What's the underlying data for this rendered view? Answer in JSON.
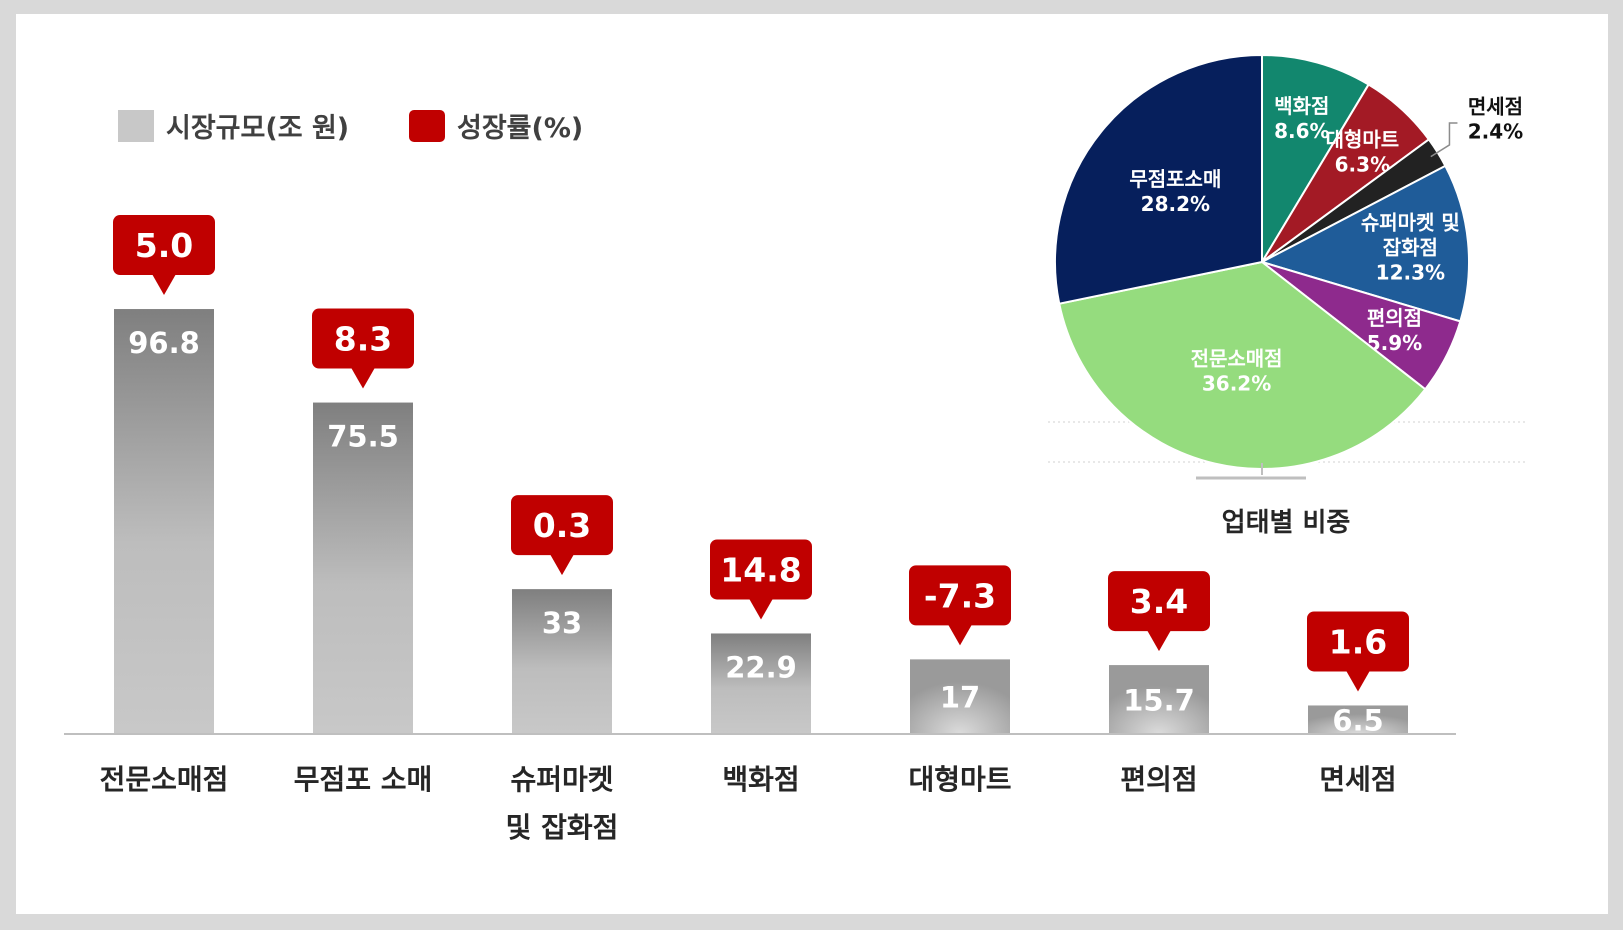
{
  "legend": {
    "size_label": "시장규모(조 원)",
    "growth_label": "성장률(%)",
    "size_color": "#c8c8c8",
    "growth_color": "#c00000"
  },
  "chart_data": [
    {
      "type": "bar",
      "categories": [
        "전문소매점",
        "무점포 소매",
        "슈퍼마켓 및 잡화점",
        "백화점",
        "대형마트",
        "편의점",
        "면세점"
      ],
      "category_lines": [
        [
          "전문소매점"
        ],
        [
          "무점포 소매"
        ],
        [
          "슈퍼마켓",
          "및 잡화점"
        ],
        [
          "백화점"
        ],
        [
          "대형마트"
        ],
        [
          "편의점"
        ],
        [
          "면세점"
        ]
      ],
      "series": [
        {
          "name": "시장규모(조 원)",
          "values": [
            96.8,
            75.5,
            33,
            22.9,
            17,
            15.7,
            6.5
          ]
        },
        {
          "name": "성장률(%)",
          "values": [
            5.0,
            8.3,
            0.3,
            14.8,
            -7.3,
            3.4,
            1.6
          ]
        }
      ],
      "value_labels": [
        "96.8",
        "75.5",
        "33",
        "22.9",
        "17",
        "15.7",
        "6.5"
      ],
      "growth_labels": [
        "5.0",
        "8.3",
        "0.3",
        "14.8",
        "-7.3",
        "3.4",
        "1.6"
      ],
      "legend_position": "top-left",
      "grid": false
    },
    {
      "type": "pie",
      "title": "업태별 비중",
      "slices": [
        {
          "label": "백화점",
          "lines": [
            "백화점"
          ],
          "value": 8.6,
          "value_label": "8.6%",
          "color": "#12876e",
          "text_color": "#ffffff"
        },
        {
          "label": "대형마트",
          "lines": [
            "대형마트"
          ],
          "value": 6.3,
          "value_label": "6.3%",
          "color": "#a31a25",
          "text_color": "#ffffff"
        },
        {
          "label": "면세점",
          "lines": [
            "면세점"
          ],
          "value": 2.4,
          "value_label": "2.4%",
          "color": "#222222",
          "text_color": "#111111"
        },
        {
          "label": "슈퍼마켓 및 잡화점",
          "lines": [
            "슈퍼마켓 및",
            "잡화점"
          ],
          "value": 12.3,
          "value_label": "12.3%",
          "color": "#1f5c99",
          "text_color": "#ffffff"
        },
        {
          "label": "편의점",
          "lines": [
            "편의점"
          ],
          "value": 5.9,
          "value_label": "5.9%",
          "color": "#8e2a8d",
          "text_color": "#ffffff"
        },
        {
          "label": "전문소매점",
          "lines": [
            "전문소매점"
          ],
          "value": 36.2,
          "value_label": "36.2%",
          "color": "#95dc7e",
          "text_color": "#ffffff"
        },
        {
          "label": "무점포소매",
          "lines": [
            "무점포소매"
          ],
          "value": 28.2,
          "value_label": "28.2%",
          "color": "#061f5c",
          "text_color": "#ffffff"
        }
      ]
    }
  ]
}
